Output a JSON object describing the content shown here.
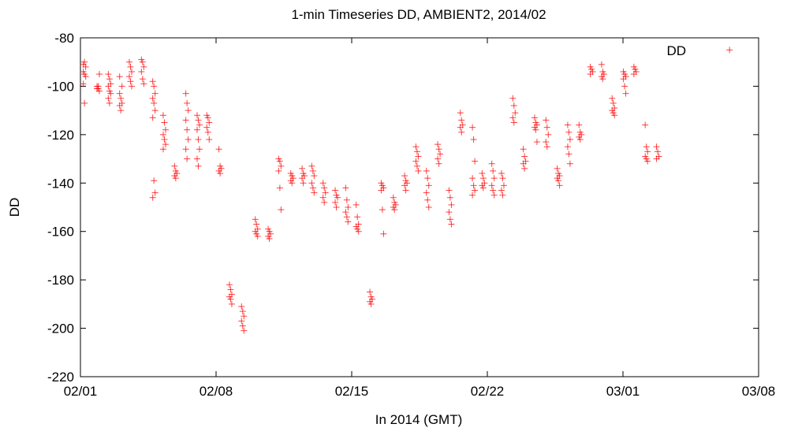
{
  "chart_data": {
    "type": "scatter",
    "title": "1-min Timeseries DD, AMBIENT2, 2014/02",
    "xlabel": "In 2014 (GMT)",
    "ylabel": "DD",
    "ylim": [
      -220,
      -80
    ],
    "xlim": [
      "2014-02-01",
      "2014-03-08"
    ],
    "x_ticks": [
      "02/01",
      "02/08",
      "02/15",
      "02/22",
      "03/01",
      "03/08"
    ],
    "y_ticks": [
      -80,
      -100,
      -120,
      -140,
      -160,
      -180,
      -200,
      -220
    ],
    "grid": false,
    "legend": {
      "position": "top-right",
      "entries": [
        "DD"
      ]
    },
    "colors": {
      "series": "#ff0000",
      "axis": "#000000"
    },
    "marker": "plus",
    "series": [
      {
        "name": "DD",
        "clusters": [
          {
            "x": "2014-02-01 05:00",
            "y": [
              -91,
              -90,
              -92,
              -94,
              -95,
              -96,
              -99,
              -107
            ]
          },
          {
            "x": "2014-02-01 22:00",
            "y": [
              -100,
              -101,
              -102,
              -101,
              -100,
              -95
            ]
          },
          {
            "x": "2014-02-02 12:00",
            "y": [
              -95,
              -97,
              -99,
              -100,
              -102,
              -103,
              -105,
              -107
            ]
          },
          {
            "x": "2014-02-03 02:00",
            "y": [
              -103,
              -105,
              -107,
              -108,
              -110,
              -100,
              -96
            ]
          },
          {
            "x": "2014-02-03 14:00",
            "y": [
              -90,
              -92,
              -94,
              -96,
              -98,
              -100
            ]
          },
          {
            "x": "2014-02-04 05:00",
            "y": [
              -89,
              -90,
              -92,
              -94,
              -97,
              -99
            ]
          },
          {
            "x": "2014-02-04 19:00",
            "y": [
              -98,
              -100,
              -103,
              -105,
              -107,
              -110,
              -113,
              -139,
              -144,
              -146
            ]
          },
          {
            "x": "2014-02-05 08:00",
            "y": [
              -112,
              -115,
              -118,
              -120,
              -122,
              -124,
              -126
            ]
          },
          {
            "x": "2014-02-05 22:00",
            "y": [
              -133,
              -135,
              -136,
              -137,
              -138
            ]
          },
          {
            "x": "2014-02-06 12:00",
            "y": [
              -103,
              -107,
              -110,
              -114,
              -118,
              -122,
              -126,
              -130
            ]
          },
          {
            "x": "2014-02-07 02:00",
            "y": [
              -112,
              -114,
              -116,
              -118,
              -122,
              -126,
              -130,
              -133
            ]
          },
          {
            "x": "2014-02-07 14:00",
            "y": [
              -112,
              -113,
              -115,
              -117,
              -119,
              -122
            ]
          },
          {
            "x": "2014-02-08 05:00",
            "y": [
              -126,
              -133,
              -134,
              -135,
              -136
            ]
          },
          {
            "x": "2014-02-08 18:00",
            "y": [
              -182,
              -184,
              -186,
              -187,
              -188,
              -190
            ]
          },
          {
            "x": "2014-02-09 09:00",
            "y": [
              -191,
              -193,
              -195,
              -197,
              -199,
              -201
            ]
          },
          {
            "x": "2014-02-10 02:00",
            "y": [
              -155,
              -157,
              -159,
              -160,
              -161,
              -162
            ]
          },
          {
            "x": "2014-02-10 18:00",
            "y": [
              -159,
              -160,
              -161,
              -162,
              -163
            ]
          },
          {
            "x": "2014-02-11 07:00",
            "y": [
              -130,
              -131,
              -133,
              -135,
              -142,
              -151
            ]
          },
          {
            "x": "2014-02-11 22:00",
            "y": [
              -136,
              -137,
              -138,
              -139,
              -140
            ]
          },
          {
            "x": "2014-02-12 12:00",
            "y": [
              -134,
              -136,
              -137,
              -138,
              -140
            ]
          },
          {
            "x": "2014-02-13 00:00",
            "y": [
              -133,
              -135,
              -137,
              -140,
              -142,
              -144
            ]
          },
          {
            "x": "2014-02-13 14:00",
            "y": [
              -140,
              -142,
              -144,
              -146,
              -148
            ]
          },
          {
            "x": "2014-02-14 05:00",
            "y": [
              -143,
              -145,
              -146,
              -148,
              -150
            ]
          },
          {
            "x": "2014-02-14 18:00",
            "y": [
              -142,
              -147,
              -150,
              -152,
              -154,
              -156
            ]
          },
          {
            "x": "2014-02-15 07:00",
            "y": [
              -149,
              -154,
              -157,
              -158,
              -159,
              -160
            ]
          },
          {
            "x": "2014-02-16 00:00",
            "y": [
              -185,
              -187,
              -188,
              -189,
              -190
            ]
          },
          {
            "x": "2014-02-16 14:00",
            "y": [
              -140,
              -141,
              -142,
              -143,
              -151,
              -161
            ]
          },
          {
            "x": "2014-02-17 05:00",
            "y": [
              -146,
              -148,
              -149,
              -150,
              -151
            ]
          },
          {
            "x": "2014-02-17 19:00",
            "y": [
              -137,
              -139,
              -140,
              -141,
              -143
            ]
          },
          {
            "x": "2014-02-18 09:00",
            "y": [
              -125,
              -127,
              -129,
              -131,
              -133,
              -135
            ]
          },
          {
            "x": "2014-02-18 22:00",
            "y": [
              -135,
              -138,
              -141,
              -144,
              -147,
              -150
            ]
          },
          {
            "x": "2014-02-19 12:00",
            "y": [
              -124,
              -126,
              -128,
              -130,
              -132
            ]
          },
          {
            "x": "2014-02-20 02:00",
            "y": [
              -143,
              -146,
              -149,
              -152,
              -155,
              -157
            ]
          },
          {
            "x": "2014-02-20 16:00",
            "y": [
              -111,
              -114,
              -116,
              -117,
              -119
            ]
          },
          {
            "x": "2014-02-21 07:00",
            "y": [
              -117,
              -122,
              -131,
              -138,
              -141,
              -143,
              -145
            ]
          },
          {
            "x": "2014-02-21 19:00",
            "y": [
              -136,
              -138,
              -140,
              -141,
              -142
            ]
          },
          {
            "x": "2014-02-22 07:00",
            "y": [
              -132,
              -135,
              -138,
              -141,
              -143,
              -145
            ]
          },
          {
            "x": "2014-02-22 19:00",
            "y": [
              -136,
              -138,
              -141,
              -143,
              -145
            ]
          },
          {
            "x": "2014-02-23 09:00",
            "y": [
              -105,
              -108,
              -111,
              -113,
              -115
            ]
          },
          {
            "x": "2014-02-23 22:00",
            "y": [
              -126,
              -129,
              -131,
              -132,
              -134
            ]
          },
          {
            "x": "2014-02-24 12:00",
            "y": [
              -113,
              -115,
              -116,
              -117,
              -118,
              -123
            ]
          },
          {
            "x": "2014-02-25 02:00",
            "y": [
              -114,
              -117,
              -120,
              -123,
              -125
            ]
          },
          {
            "x": "2014-02-25 16:00",
            "y": [
              -134,
              -136,
              -137,
              -138,
              -139,
              -141
            ]
          },
          {
            "x": "2014-02-26 05:00",
            "y": [
              -116,
              -119,
              -122,
              -125,
              -128,
              -132
            ]
          },
          {
            "x": "2014-02-26 19:00",
            "y": [
              -116,
              -119,
              -120,
              -121,
              -122
            ]
          },
          {
            "x": "2014-02-27 09:00",
            "y": [
              -92,
              -93,
              -94,
              -95
            ]
          },
          {
            "x": "2014-02-27 23:00",
            "y": [
              -91,
              -94,
              -95,
              -96,
              -97
            ]
          },
          {
            "x": "2014-02-28 12:00",
            "y": [
              -105,
              -107,
              -109,
              -110,
              -111,
              -112
            ]
          },
          {
            "x": "2014-03-01 02:00",
            "y": [
              -94,
              -95,
              -96,
              -97,
              -100,
              -103
            ]
          },
          {
            "x": "2014-03-01 15:00",
            "y": [
              -92,
              -93,
              -94,
              -95
            ]
          },
          {
            "x": "2014-03-02 05:00",
            "y": [
              -116,
              -125,
              -127,
              -129,
              -130,
              -131
            ]
          },
          {
            "x": "2014-03-02 19:00",
            "y": [
              -125,
              -127,
              -129,
              -130
            ]
          },
          {
            "x": "2014-03-06 12:00",
            "y": [
              -85
            ]
          }
        ]
      }
    ]
  }
}
